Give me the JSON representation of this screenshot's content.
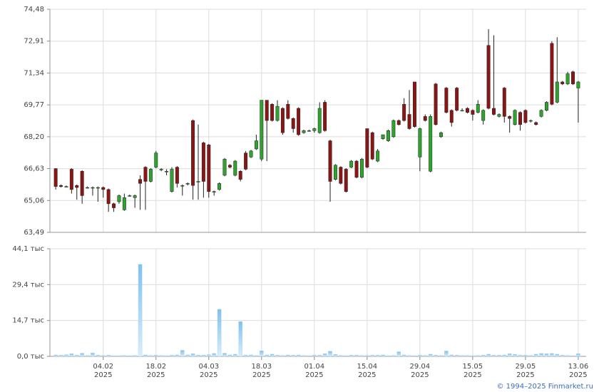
{
  "chart_data": [
    {
      "type": "candlestick",
      "open": [
        66.63,
        65.8,
        65.75,
        66.6,
        65.8,
        66.5,
        65.7,
        65.7,
        65.7,
        65.7,
        65.6,
        64.9,
        65.0,
        64.6,
        65.3,
        65.2,
        66.1,
        66.7,
        66.0,
        66.7,
        66.6,
        66.5,
        65.5,
        66.7,
        65.8,
        65.9,
        69.0,
        66.0,
        67.9,
        67.8,
        65.5,
        65.6,
        66.3,
        66.8,
        66.3,
        66.5,
        67.4,
        67.2,
        67.6,
        67.1,
        70.0,
        69.8,
        69.0,
        69.6,
        69.8,
        69.1,
        69.6,
        68.4,
        68.5,
        68.5,
        68.4,
        69.9,
        68.0,
        66.1,
        66.7,
        66.6,
        66.7,
        67.0,
        66.2,
        68.6,
        68.4,
        67.0,
        68.1,
        68.0,
        68.2,
        69.0,
        69.8,
        69.3,
        70.9,
        67.2,
        69.2,
        66.5,
        70.8,
        68.2,
        70.6,
        69.5,
        70.6,
        69.5,
        69.6,
        69.5,
        69.4,
        69.0,
        72.7,
        69.6,
        69.2,
        70.6,
        69.2,
        68.8,
        69.4,
        69.5,
        69.0,
        68.9,
        69.2,
        69.5,
        72.8,
        69.9,
        70.9,
        70.8,
        71.4,
        70.6
      ],
      "high": [
        66.65,
        65.85,
        65.8,
        66.65,
        65.85,
        66.55,
        65.75,
        65.75,
        65.75,
        65.75,
        65.65,
        64.95,
        65.35,
        65.4,
        65.35,
        65.35,
        66.3,
        66.75,
        66.65,
        67.5,
        66.65,
        66.6,
        66.7,
        66.75,
        65.85,
        65.95,
        69.05,
        68.8,
        67.95,
        67.85,
        65.55,
        65.95,
        67.15,
        66.85,
        67.05,
        66.55,
        67.5,
        67.55,
        68.3,
        70.0,
        70.0,
        69.85,
        70.0,
        69.65,
        70.0,
        69.15,
        69.65,
        68.55,
        68.55,
        68.65,
        69.9,
        70.0,
        68.05,
        66.85,
        66.75,
        66.65,
        67.05,
        67.05,
        67.15,
        68.6,
        68.45,
        67.6,
        68.3,
        68.55,
        69.05,
        69.05,
        70.1,
        70.5,
        70.9,
        68.65,
        69.3,
        69.3,
        70.85,
        68.45,
        70.65,
        69.55,
        70.65,
        69.6,
        69.65,
        69.55,
        70.0,
        69.55,
        73.5,
        73.2,
        69.35,
        70.65,
        69.25,
        69.55,
        69.45,
        69.55,
        69.05,
        68.95,
        69.55,
        69.95,
        72.9,
        73.1,
        70.95,
        71.4,
        71.45,
        70.95
      ],
      "low": [
        65.6,
        65.7,
        65.7,
        65.4,
        65.1,
        64.9,
        65.65,
        65.3,
        65.0,
        65.2,
        64.5,
        64.5,
        64.9,
        64.55,
        65.25,
        64.7,
        64.6,
        64.6,
        65.95,
        66.65,
        66.5,
        66.3,
        65.45,
        65.7,
        65.3,
        65.8,
        65.1,
        65.1,
        65.2,
        65.2,
        65.3,
        65.55,
        66.25,
        66.65,
        66.25,
        66.0,
        66.55,
        67.15,
        67.55,
        67.0,
        67.0,
        68.95,
        68.95,
        68.3,
        69.05,
        68.4,
        68.25,
        68.35,
        68.45,
        68.4,
        68.35,
        68.45,
        65.0,
        66.05,
        65.85,
        65.45,
        66.65,
        66.15,
        66.15,
        66.65,
        67.05,
        66.95,
        68.05,
        67.95,
        68.15,
        68.75,
        68.95,
        68.55,
        68.65,
        66.5,
        68.95,
        66.45,
        68.75,
        68.15,
        69.35,
        68.7,
        69.45,
        69.45,
        69.35,
        69.0,
        69.35,
        68.8,
        69.55,
        69.25,
        69.15,
        68.9,
        68.4,
        68.75,
        68.5,
        68.85,
        68.9,
        68.75,
        69.15,
        69.45,
        69.75,
        69.85,
        70.75,
        70.75,
        70.75,
        68.9
      ],
      "close": [
        65.75,
        65.75,
        65.75,
        65.6,
        65.7,
        65.3,
        65.7,
        65.7,
        65.7,
        65.6,
        64.9,
        64.7,
        65.3,
        65.2,
        65.3,
        65.3,
        65.9,
        66.0,
        66.6,
        67.4,
        66.6,
        66.5,
        66.6,
        65.9,
        65.8,
        65.9,
        65.8,
        66.0,
        66.0,
        65.5,
        65.5,
        65.9,
        67.1,
        66.7,
        67.0,
        66.1,
        66.6,
        67.5,
        68.0,
        70.0,
        69.0,
        69.0,
        69.7,
        68.4,
        69.1,
        68.6,
        68.3,
        68.5,
        68.5,
        68.6,
        69.6,
        68.5,
        66.0,
        66.8,
        65.9,
        65.5,
        67.0,
        66.2,
        67.1,
        66.7,
        67.1,
        67.5,
        68.3,
        68.5,
        69.0,
        68.8,
        69.0,
        68.6,
        68.7,
        68.6,
        69.0,
        69.2,
        68.8,
        68.4,
        69.4,
        68.9,
        69.5,
        69.5,
        69.4,
        69.3,
        69.8,
        69.5,
        69.6,
        69.3,
        69.3,
        69.2,
        69.1,
        69.5,
        68.8,
        68.9,
        69.0,
        68.8,
        69.5,
        69.9,
        69.8,
        70.9,
        70.8,
        71.3,
        70.8,
        70.9
      ],
      "up_color": "#2ea32e",
      "down_color": "#8b1515",
      "xlim": [
        -1.1,
        100.5
      ],
      "ylim": [
        63.49,
        74.48
      ],
      "yticks": [
        {
          "value": 63.49,
          "label": "63,49"
        },
        {
          "value": 65.06,
          "label": "65,06"
        },
        {
          "value": 66.63,
          "label": "66,63"
        },
        {
          "value": 68.2,
          "label": "68,20"
        },
        {
          "value": 69.77,
          "label": "69,77"
        },
        {
          "value": 71.34,
          "label": "71,34"
        },
        {
          "value": 72.91,
          "label": "72,91"
        },
        {
          "value": 74.48,
          "label": "74,48"
        }
      ],
      "grid": true
    },
    {
      "type": "bar",
      "values": [
        0.6,
        0.5,
        0.7,
        1.1,
        0.5,
        1.3,
        0.4,
        1.4,
        0.5,
        0.4,
        0.5,
        0.3,
        0.3,
        0.4,
        0.3,
        0.4,
        37.7,
        0.6,
        0.4,
        0.5,
        0.4,
        0.3,
        0.5,
        0.6,
        2.5,
        0.6,
        1.1,
        0.5,
        0.5,
        0.7,
        1.2,
        19.3,
        1.3,
        0.6,
        0.9,
        14.3,
        0.5,
        0.6,
        0.4,
        2.3,
        0.6,
        0.9,
        0.5,
        0.4,
        0.6,
        0.5,
        0.6,
        0.4,
        0.3,
        0.5,
        0.5,
        1.1,
        2.1,
        0.8,
        0.4,
        0.3,
        0.5,
        0.5,
        0.4,
        0.4,
        0.5,
        0.5,
        0.6,
        0.3,
        0.4,
        1.9,
        0.6,
        0.4,
        0.3,
        0.5,
        0.4,
        0.9,
        0.5,
        0.4,
        2.2,
        0.6,
        0.5,
        0.4,
        0.4,
        0.3,
        0.4,
        0.5,
        0.9,
        0.5,
        0.5,
        0.6,
        1.1,
        0.8,
        0.5,
        0.5,
        0.4,
        0.9,
        1.2,
        1.1,
        1.2,
        0.9,
        0.5,
        0.4,
        0.3,
        1.1
      ],
      "color": "#9dd0f2",
      "xlim": [
        -1.1,
        100.5
      ],
      "ylim": [
        0,
        44.1
      ],
      "yticks": [
        {
          "value": 0,
          "label": "0,0 тыс"
        },
        {
          "value": 14.7,
          "label": "14,7 тыс"
        },
        {
          "value": 29.4,
          "label": "29,4 тыс"
        },
        {
          "value": 44.1,
          "label": "44,1 тыс"
        }
      ],
      "xticks": [
        {
          "value": 9,
          "label": "04.02",
          "sublabel": "2025"
        },
        {
          "value": 19,
          "label": "18.02",
          "sublabel": "2025"
        },
        {
          "value": 29,
          "label": "04.03",
          "sublabel": "2025"
        },
        {
          "value": 39,
          "label": "18.03",
          "sublabel": "2025"
        },
        {
          "value": 49,
          "label": "01.04",
          "sublabel": "2025"
        },
        {
          "value": 59,
          "label": "15.04",
          "sublabel": "2025"
        },
        {
          "value": 69,
          "label": "29.04",
          "sublabel": "2025"
        },
        {
          "value": 79,
          "label": "15.05",
          "sublabel": "2025"
        },
        {
          "value": 89,
          "label": "29.05",
          "sublabel": "2025"
        },
        {
          "value": 99,
          "label": "13.06",
          "sublabel": "2025"
        }
      ],
      "grid": true
    }
  ],
  "footer": "© 1994–2025 Finmarket.ru"
}
